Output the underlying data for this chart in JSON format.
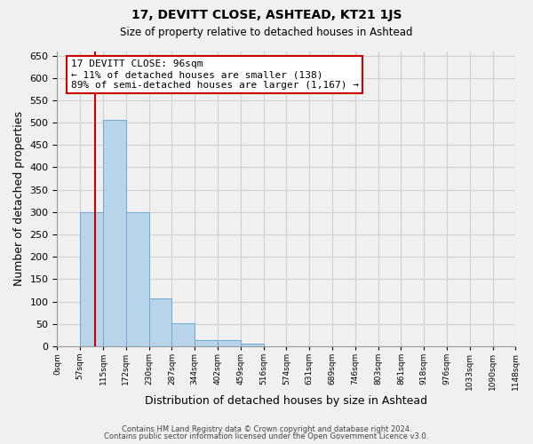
{
  "title": "17, DEVITT CLOSE, ASHTEAD, KT21 1JS",
  "subtitle": "Size of property relative to detached houses in Ashtead",
  "xlabel": "Distribution of detached houses by size in Ashtead",
  "ylabel": "Number of detached properties",
  "bin_labels": [
    "0sqm",
    "57sqm",
    "115sqm",
    "172sqm",
    "230sqm",
    "287sqm",
    "344sqm",
    "402sqm",
    "459sqm",
    "516sqm",
    "574sqm",
    "631sqm",
    "689sqm",
    "746sqm",
    "803sqm",
    "861sqm",
    "918sqm",
    "976sqm",
    "1033sqm",
    "1090sqm",
    "1148sqm"
  ],
  "bar_heights": [
    0,
    300,
    507,
    300,
    107,
    52,
    14,
    14,
    5,
    0,
    0,
    0,
    0,
    0,
    0,
    0,
    0,
    0,
    0,
    0
  ],
  "bar_color": "#b8d4e8",
  "bar_edge_color": "#6aaad4",
  "vline_color": "#cc0000",
  "vline_pos": 1.67,
  "annotation_text": "17 DEVITT CLOSE: 96sqm\n← 11% of detached houses are smaller (138)\n89% of semi-detached houses are larger (1,167) →",
  "ylim": [
    0,
    660
  ],
  "yticks": [
    0,
    50,
    100,
    150,
    200,
    250,
    300,
    350,
    400,
    450,
    500,
    550,
    600,
    650
  ],
  "footer_line1": "Contains HM Land Registry data © Crown copyright and database right 2024.",
  "footer_line2": "Contains public sector information licensed under the Open Government Licence v3.0.",
  "bg_color": "#f0f0f0",
  "plot_bg_color": "#f0f0f0",
  "grid_color": "#d0d0d0",
  "n_bins": 20
}
